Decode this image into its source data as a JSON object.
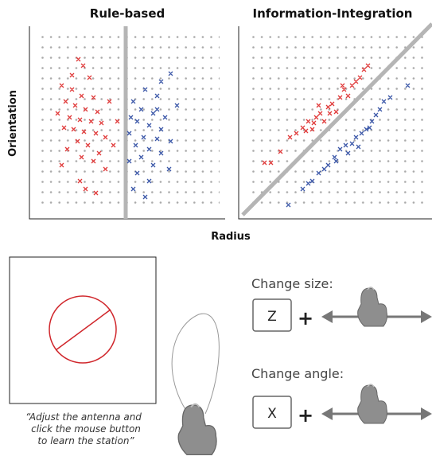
{
  "titles": {
    "left": "Rule-based",
    "right": "Information-Integration"
  },
  "axes": {
    "y": "Orientation",
    "x": "Radius"
  },
  "caption": [
    "“Adjust the antenna and",
    "click the mouse button",
    "to learn the station”"
  ],
  "controls": [
    {
      "label": "Change size:",
      "key": "Z",
      "plus": "+"
    },
    {
      "label": "Change angle:",
      "key": "X",
      "plus": "+"
    }
  ]
}
